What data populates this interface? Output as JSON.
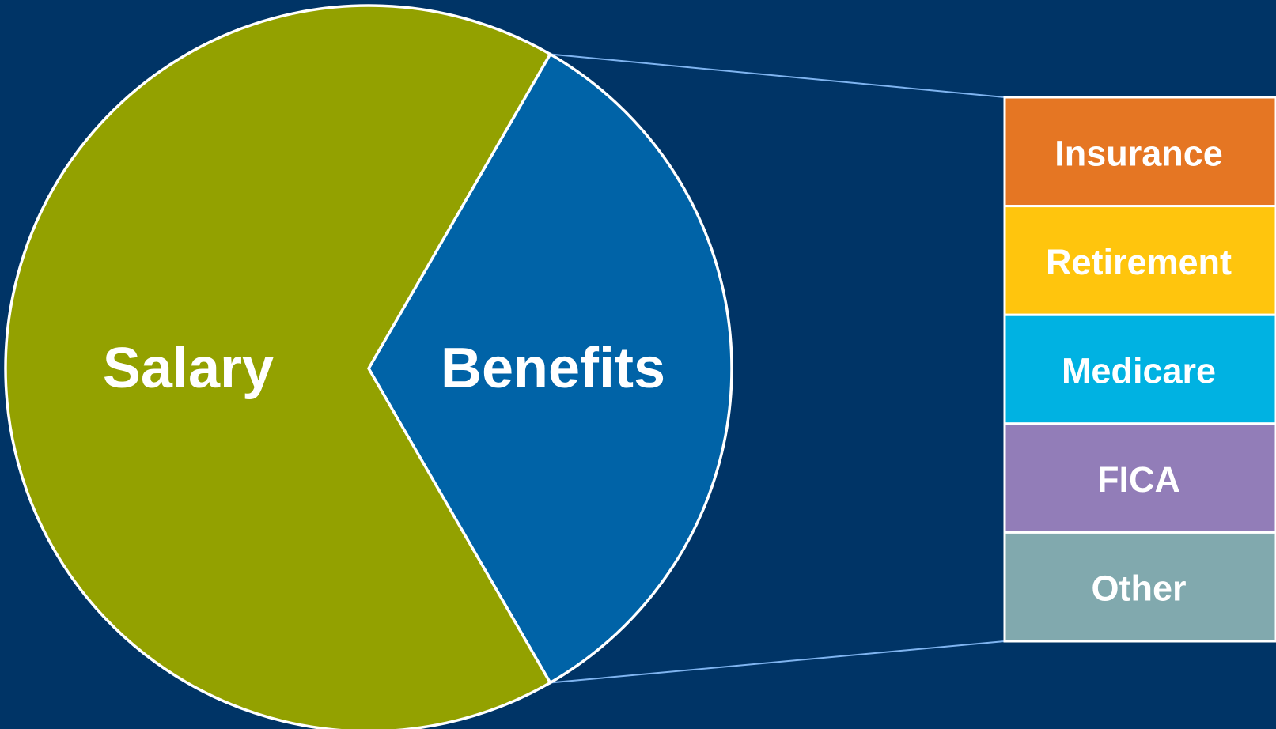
{
  "chart_data": {
    "type": "pie",
    "variant": "bar-of-pie",
    "slices": [
      {
        "label": "Salary",
        "value": 2,
        "color": "#93A100"
      },
      {
        "label": "Benefits",
        "value": 1,
        "color": "#0063A7"
      }
    ],
    "breakdown": {
      "of": "Benefits",
      "stack": [
        {
          "label": "Insurance",
          "value": 1,
          "color": "#E57623"
        },
        {
          "label": "Retirement",
          "value": 1,
          "color": "#FFC50D"
        },
        {
          "label": "Medicare",
          "value": 1,
          "color": "#00B2E2"
        },
        {
          "label": "FICA",
          "value": 1,
          "color": "#927DB8"
        },
        {
          "label": "Other",
          "value": 1,
          "color": "#81A9AE"
        }
      ]
    },
    "connector_color": "#7FB4F0",
    "title": "",
    "legend": "none"
  }
}
